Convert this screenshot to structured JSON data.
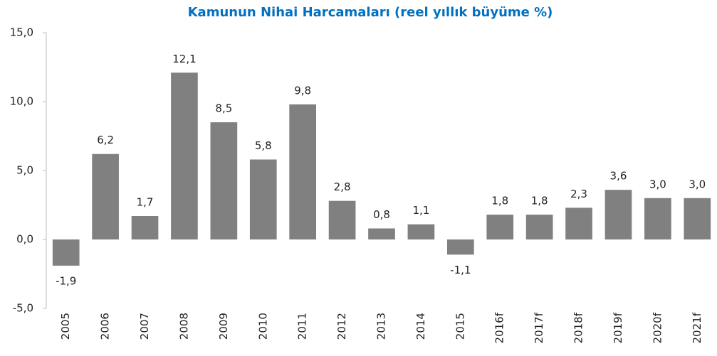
{
  "chart_data": {
    "type": "bar",
    "title": "Kamunun Nihai Harcamaları (reel yıllık büyüme %)",
    "categories": [
      "2005",
      "2006",
      "2007",
      "2008",
      "2009",
      "2010",
      "2011",
      "2012",
      "2013",
      "2014",
      "2015",
      "2016f",
      "2017f",
      "2018f",
      "2019f",
      "2020f",
      "2021f"
    ],
    "values": [
      -1.9,
      6.2,
      1.7,
      12.1,
      8.5,
      5.8,
      9.8,
      2.8,
      0.8,
      1.1,
      -1.1,
      1.8,
      1.8,
      2.3,
      3.6,
      3.0,
      3.0
    ],
    "value_labels": [
      "-1,9",
      "6,2",
      "1,7",
      "12,1",
      "8,5",
      "5,8",
      "9,8",
      "2,8",
      "0,8",
      "1,1",
      "-1,1",
      "1,8",
      "1,8",
      "2,3",
      "3,6",
      "3,0",
      "3,0"
    ],
    "color": "#808080",
    "ylim": [
      -5,
      15
    ],
    "yticks": [
      {
        "value": -5,
        "label": "-5,0"
      },
      {
        "value": 0,
        "label": "0,0"
      },
      {
        "value": 5,
        "label": "5,0"
      },
      {
        "value": 10,
        "label": "10,0"
      },
      {
        "value": 15,
        "label": "15,0"
      }
    ],
    "grid": false
  }
}
